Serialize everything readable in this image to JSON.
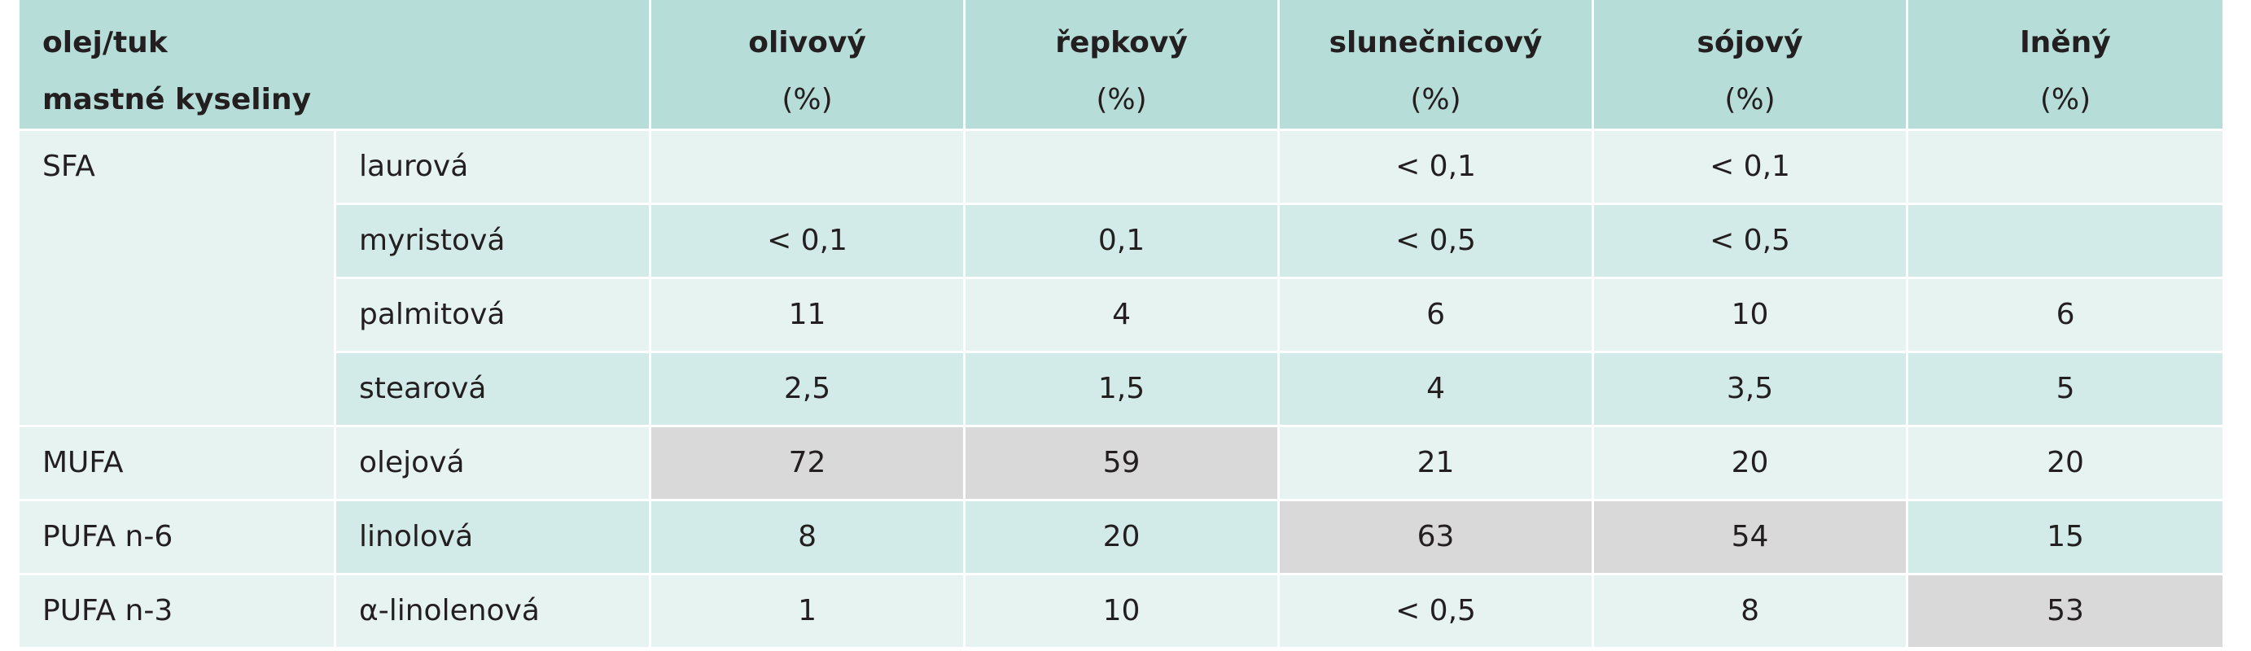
{
  "header": {
    "row_label_line1": "olej/tuk",
    "row_label_line2": "mastné kyseliny",
    "oils": [
      {
        "name": "olivový",
        "unit": "(%)"
      },
      {
        "name": "řepkový",
        "unit": "(%)"
      },
      {
        "name": "slunečnicový",
        "unit": "(%)"
      },
      {
        "name": "sójový",
        "unit": "(%)"
      },
      {
        "name": "lněný",
        "unit": "(%)"
      }
    ]
  },
  "groups": [
    {
      "name": "SFA",
      "rows": [
        {
          "acid": "laurová",
          "values": [
            "",
            "",
            "< 0,1",
            "< 0,1",
            ""
          ]
        },
        {
          "acid": "myristová",
          "values": [
            "< 0,1",
            "0,1",
            "< 0,5",
            "< 0,5",
            ""
          ]
        },
        {
          "acid": "palmitová",
          "values": [
            "11",
            "4",
            "6",
            "10",
            "6"
          ]
        },
        {
          "acid": "stearová",
          "values": [
            "2,5",
            "1,5",
            "4",
            "3,5",
            "5"
          ]
        }
      ]
    },
    {
      "name": "MUFA",
      "rows": [
        {
          "acid": "olejová",
          "values": [
            "72",
            "59",
            "21",
            "20",
            "20"
          ]
        }
      ]
    },
    {
      "name": "PUFA n-6",
      "rows": [
        {
          "acid": "linolová",
          "values": [
            "8",
            "20",
            "63",
            "54",
            "15"
          ]
        }
      ]
    },
    {
      "name": "PUFA n-3",
      "rows": [
        {
          "acid": "α-linolenová",
          "values": [
            "1",
            "10",
            "< 0,5",
            "8",
            "53"
          ]
        }
      ]
    }
  ],
  "highlight_color": "#d9d9d9",
  "header_color": "#b6ddd7"
}
